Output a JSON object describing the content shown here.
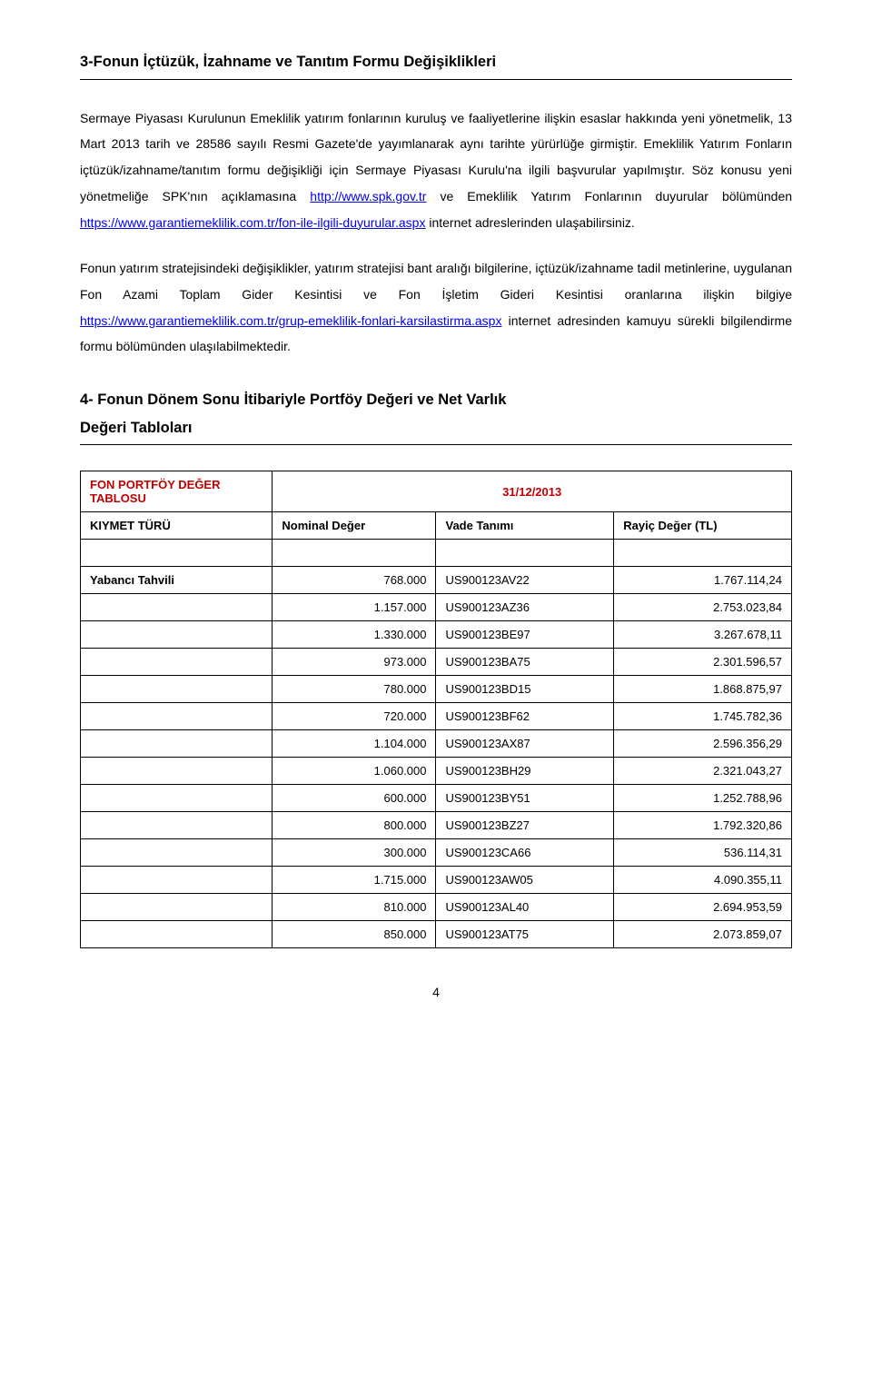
{
  "section3": {
    "heading": "3-Fonun İçtüzük, İzahname ve Tanıtım Formu Değişiklikleri",
    "para1_a": "Sermaye Piyasası Kurulunun Emeklilik yatırım fonlarının kuruluş ve faaliyetlerine ilişkin esaslar hakkında yeni yönetmelik, 13 Mart 2013 tarih ve 28586 sayılı Resmi Gazete'de yayımlanarak aynı tarihte yürürlüğe girmiştir. Emeklilik Yatırım Fonların içtüzük/izahname/tanıtım formu değişikliği için Sermaye Piyasası Kurulu'na ilgili başvurular yapılmıştır. Söz konusu yeni yönetmeliğe SPK'nın açıklamasına ",
    "link1": "http://www.spk.gov.tr",
    "para1_b": " ve Emeklilik Yatırım Fonlarının duyurular bölümünden ",
    "link2": "https://www.garantiemeklilik.com.tr/fon-ile-ilgili-duyurular.aspx",
    "para1_c": " internet adreslerinden ulaşabilirsiniz.",
    "para2_a": "Fonun yatırım stratejisindeki değişiklikler, yatırım stratejisi bant aralığı bilgilerine, içtüzük/izahname tadil metinlerine, uygulanan Fon Azami Toplam Gider Kesintisi ve Fon İşletim Gideri Kesintisi oranlarına ilişkin bilgiye ",
    "link3": "https://www.garantiemeklilik.com.tr/grup-emeklilik-fonlari-karsilastirma.aspx",
    "para2_b": " internet adresinden kamuyu sürekli bilgilendirme formu bölümünden  ulaşılabilmektedir."
  },
  "section4": {
    "heading_l1": "4- Fonun Dönem Sonu İtibariyle Portföy Değeri ve Net Varlık",
    "heading_l2": "Değeri Tabloları"
  },
  "table": {
    "header": {
      "title": "FON PORTFÖY DEĞER TABLOSU",
      "date": "31/12/2013",
      "col1": "KIYMET TÜRÜ",
      "col2": "Nominal Değer",
      "col3": "Vade Tanımı",
      "col4": "Rayiç Değer (TL)"
    },
    "rowlabel": "Yabancı Tahvili",
    "rows": [
      {
        "nominal": "768.000",
        "vade": "US900123AV22",
        "rayic": "1.767.114,24"
      },
      {
        "nominal": "1.157.000",
        "vade": "US900123AZ36",
        "rayic": "2.753.023,84"
      },
      {
        "nominal": "1.330.000",
        "vade": "US900123BE97",
        "rayic": "3.267.678,11"
      },
      {
        "nominal": "973.000",
        "vade": "US900123BA75",
        "rayic": "2.301.596,57"
      },
      {
        "nominal": "780.000",
        "vade": "US900123BD15",
        "rayic": "1.868.875,97"
      },
      {
        "nominal": "720.000",
        "vade": "US900123BF62",
        "rayic": "1.745.782,36"
      },
      {
        "nominal": "1.104.000",
        "vade": "US900123AX87",
        "rayic": "2.596.356,29"
      },
      {
        "nominal": "1.060.000",
        "vade": "US900123BH29",
        "rayic": "2.321.043,27"
      },
      {
        "nominal": "600.000",
        "vade": "US900123BY51",
        "rayic": "1.252.788,96"
      },
      {
        "nominal": "800.000",
        "vade": "US900123BZ27",
        "rayic": "1.792.320,86"
      },
      {
        "nominal": "300.000",
        "vade": "US900123CA66",
        "rayic": "536.114,31"
      },
      {
        "nominal": "1.715.000",
        "vade": "US900123AW05",
        "rayic": "4.090.355,11"
      },
      {
        "nominal": "810.000",
        "vade": "US900123AL40",
        "rayic": "2.694.953,59"
      },
      {
        "nominal": "850.000",
        "vade": "US900123AT75",
        "rayic": "2.073.859,07"
      }
    ],
    "colwidths": [
      "27%",
      "23%",
      "25%",
      "25%"
    ]
  },
  "pageNumber": "4",
  "colors": {
    "headerRed": "#c00000",
    "link": "#0000ee",
    "text": "#000000",
    "border": "#000000"
  }
}
